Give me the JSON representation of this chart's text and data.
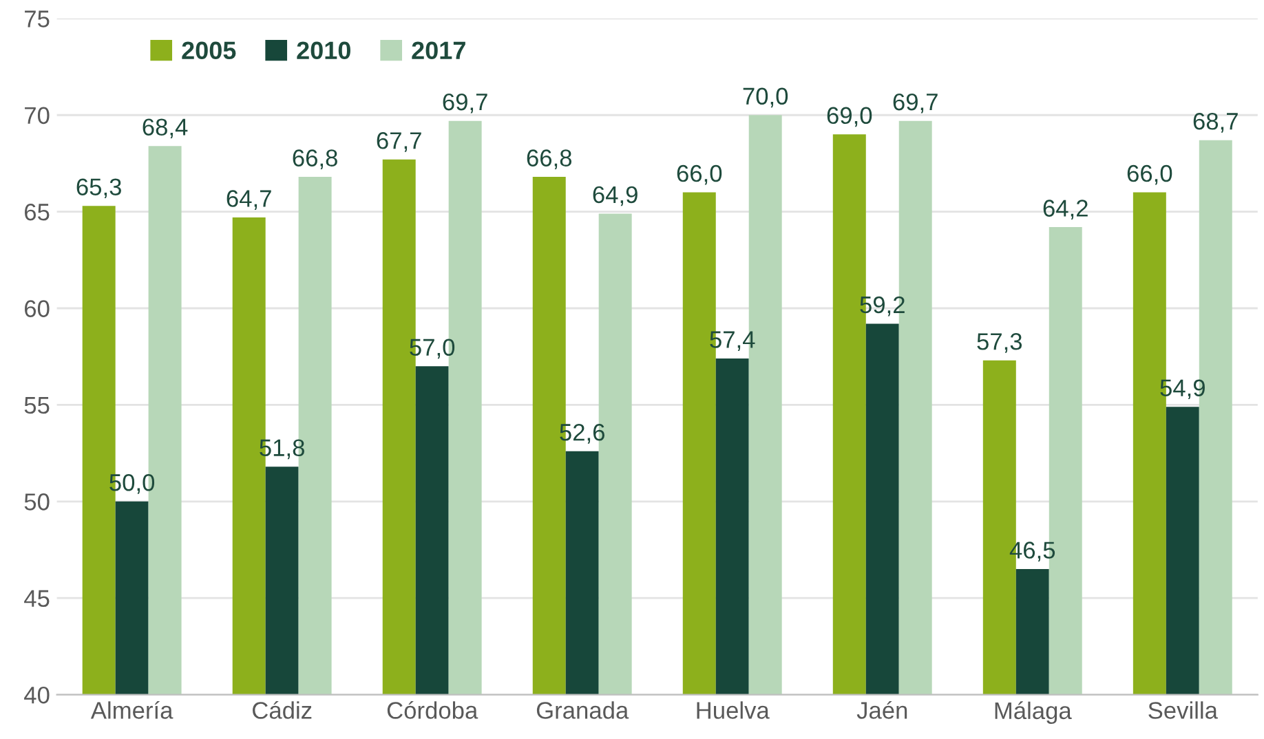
{
  "chart_data": {
    "type": "bar",
    "categories": [
      "Almería",
      "Cádiz",
      "Córdoba",
      "Granada",
      "Huelva",
      "Jaén",
      "Málaga",
      "Sevilla"
    ],
    "series": [
      {
        "name": "2005",
        "color": "#8db01c",
        "values": [
          65.3,
          64.7,
          67.7,
          66.8,
          66.0,
          69.0,
          57.3,
          66.0
        ],
        "value_labels": [
          "65,3",
          "64,7",
          "67,7",
          "66,8",
          "66,0",
          "69,0",
          "57,3",
          "66,0"
        ]
      },
      {
        "name": "2010",
        "color": "#17473a",
        "values": [
          50.0,
          51.8,
          57.0,
          52.6,
          57.4,
          59.2,
          46.5,
          54.9
        ],
        "value_labels": [
          "50,0",
          "51,8",
          "57,0",
          "52,6",
          "57,4",
          "59,2",
          "46,5",
          "54,9"
        ]
      },
      {
        "name": "2017",
        "color": "#b7d7b8",
        "values": [
          68.4,
          66.8,
          69.7,
          64.9,
          70.0,
          69.7,
          64.2,
          68.7
        ],
        "value_labels": [
          "68,4",
          "66,8",
          "69,7",
          "64,9",
          "70,0",
          "69,7",
          "64,2",
          "68,7"
        ]
      }
    ],
    "ylim": [
      40,
      75
    ],
    "yticks": [
      40,
      45,
      50,
      55,
      60,
      65,
      70,
      75
    ],
    "grid": "y",
    "legend": "top left"
  }
}
